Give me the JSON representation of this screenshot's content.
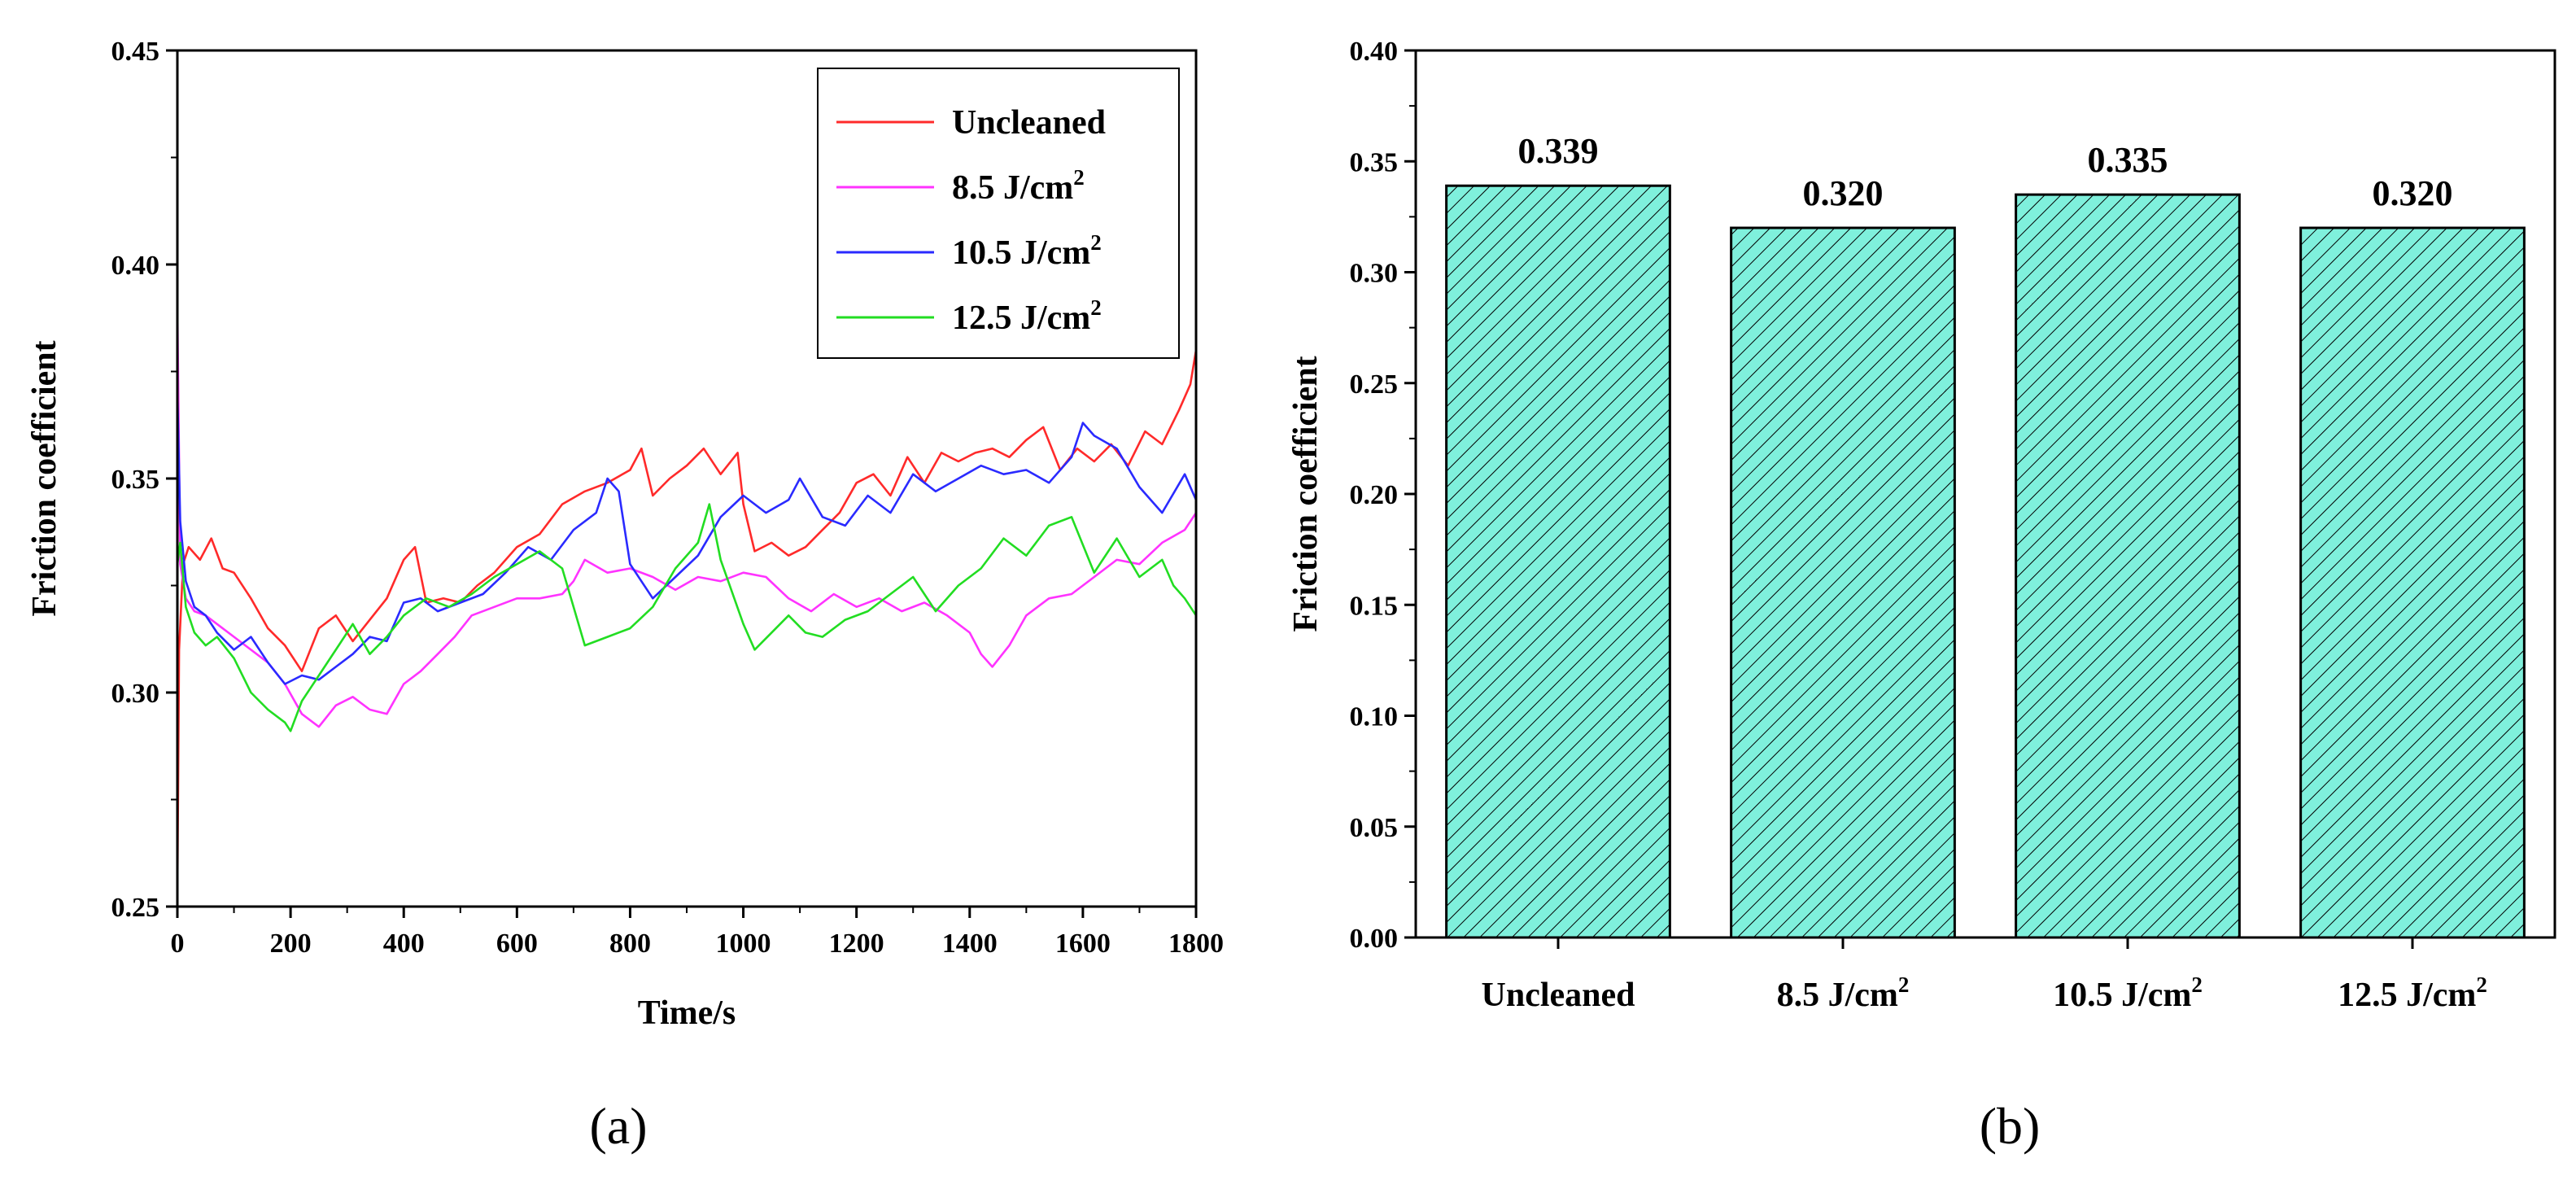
{
  "panel_labels": {
    "a": "(a)",
    "b": "(b)"
  },
  "chart_data": [
    {
      "id": "a",
      "type": "line",
      "title": "",
      "xlabel": "Time/s",
      "ylabel": "Friction coefficient",
      "xlim": [
        0,
        1800
      ],
      "ylim": [
        0.25,
        0.45
      ],
      "xticks": [
        0,
        200,
        400,
        600,
        800,
        1000,
        1200,
        1400,
        1600,
        1800
      ],
      "yticks": [
        0.25,
        0.3,
        0.35,
        0.4,
        0.45
      ],
      "ytick_labels": [
        "0.25",
        "0.30",
        "0.35",
        "0.40",
        "0.45"
      ],
      "legend_position": "top-right",
      "series": [
        {
          "name": "Uncleaned",
          "name_main": "Uncleaned",
          "name_sup": "",
          "color": "#ff2a2a",
          "x": [
            0,
            3,
            10,
            20,
            40,
            60,
            80,
            100,
            130,
            160,
            190,
            220,
            250,
            280,
            310,
            340,
            370,
            400,
            420,
            440,
            470,
            500,
            530,
            560,
            600,
            640,
            680,
            720,
            760,
            800,
            820,
            840,
            870,
            900,
            930,
            960,
            990,
            1000,
            1020,
            1050,
            1080,
            1110,
            1140,
            1170,
            1200,
            1230,
            1260,
            1290,
            1320,
            1350,
            1380,
            1410,
            1440,
            1470,
            1500,
            1530,
            1560,
            1590,
            1620,
            1650,
            1680,
            1710,
            1740,
            1770,
            1790,
            1800
          ],
          "y": [
            0.253,
            0.31,
            0.33,
            0.334,
            0.331,
            0.336,
            0.329,
            0.328,
            0.322,
            0.315,
            0.311,
            0.305,
            0.315,
            0.318,
            0.312,
            0.317,
            0.322,
            0.331,
            0.334,
            0.321,
            0.322,
            0.321,
            0.325,
            0.328,
            0.334,
            0.337,
            0.344,
            0.347,
            0.349,
            0.352,
            0.357,
            0.346,
            0.35,
            0.353,
            0.357,
            0.351,
            0.356,
            0.344,
            0.333,
            0.335,
            0.332,
            0.334,
            0.338,
            0.342,
            0.349,
            0.351,
            0.346,
            0.355,
            0.349,
            0.356,
            0.354,
            0.356,
            0.357,
            0.355,
            0.359,
            0.362,
            0.352,
            0.357,
            0.354,
            0.358,
            0.353,
            0.361,
            0.358,
            0.366,
            0.372,
            0.38
          ]
        },
        {
          "name": "8.5 J/cm2",
          "name_main": "8.5 J/cm",
          "name_sup": "2",
          "color": "#ff33ff",
          "x": [
            0,
            5,
            15,
            30,
            50,
            70,
            100,
            130,
            160,
            190,
            220,
            250,
            280,
            310,
            340,
            370,
            400,
            430,
            460,
            490,
            520,
            560,
            600,
            640,
            680,
            700,
            720,
            760,
            800,
            840,
            880,
            920,
            960,
            1000,
            1040,
            1080,
            1120,
            1160,
            1200,
            1240,
            1280,
            1320,
            1360,
            1400,
            1420,
            1440,
            1470,
            1500,
            1540,
            1580,
            1620,
            1660,
            1700,
            1740,
            1780,
            1800
          ],
          "y": [
            0.39,
            0.33,
            0.322,
            0.319,
            0.318,
            0.316,
            0.313,
            0.31,
            0.307,
            0.302,
            0.295,
            0.292,
            0.297,
            0.299,
            0.296,
            0.295,
            0.302,
            0.305,
            0.309,
            0.313,
            0.318,
            0.32,
            0.322,
            0.322,
            0.323,
            0.326,
            0.331,
            0.328,
            0.329,
            0.327,
            0.324,
            0.327,
            0.326,
            0.328,
            0.327,
            0.322,
            0.319,
            0.323,
            0.32,
            0.322,
            0.319,
            0.321,
            0.318,
            0.314,
            0.309,
            0.306,
            0.311,
            0.318,
            0.322,
            0.323,
            0.327,
            0.331,
            0.33,
            0.335,
            0.338,
            0.342
          ]
        },
        {
          "name": "10.5 J/cm2",
          "name_main": "10.5 J/cm",
          "name_sup": "2",
          "color": "#2a2aff",
          "x": [
            0,
            5,
            15,
            30,
            50,
            70,
            100,
            130,
            160,
            190,
            220,
            250,
            280,
            310,
            340,
            370,
            400,
            430,
            460,
            500,
            540,
            580,
            620,
            660,
            700,
            740,
            760,
            780,
            800,
            840,
            880,
            920,
            960,
            1000,
            1040,
            1080,
            1100,
            1140,
            1180,
            1220,
            1260,
            1300,
            1340,
            1380,
            1420,
            1460,
            1500,
            1540,
            1580,
            1600,
            1620,
            1660,
            1700,
            1740,
            1780,
            1800
          ],
          "y": [
            0.37,
            0.34,
            0.326,
            0.32,
            0.318,
            0.314,
            0.31,
            0.313,
            0.307,
            0.302,
            0.304,
            0.303,
            0.306,
            0.309,
            0.313,
            0.312,
            0.321,
            0.322,
            0.319,
            0.321,
            0.323,
            0.328,
            0.334,
            0.331,
            0.338,
            0.342,
            0.35,
            0.347,
            0.33,
            0.322,
            0.327,
            0.332,
            0.341,
            0.346,
            0.342,
            0.345,
            0.35,
            0.341,
            0.339,
            0.346,
            0.342,
            0.351,
            0.347,
            0.35,
            0.353,
            0.351,
            0.352,
            0.349,
            0.355,
            0.363,
            0.36,
            0.357,
            0.348,
            0.342,
            0.351,
            0.345
          ]
        },
        {
          "name": "12.5 J/cm2",
          "name_main": "12.5 J/cm",
          "name_sup": "2",
          "color": "#22dd22",
          "x": [
            0,
            5,
            15,
            30,
            50,
            70,
            100,
            130,
            160,
            190,
            200,
            220,
            250,
            280,
            310,
            340,
            370,
            400,
            440,
            480,
            520,
            560,
            600,
            640,
            680,
            700,
            720,
            760,
            800,
            840,
            880,
            920,
            940,
            960,
            1000,
            1020,
            1050,
            1080,
            1110,
            1140,
            1180,
            1220,
            1260,
            1300,
            1340,
            1380,
            1420,
            1460,
            1500,
            1540,
            1580,
            1620,
            1660,
            1700,
            1740,
            1760,
            1780,
            1800
          ],
          "y": [
            0.33,
            0.335,
            0.32,
            0.314,
            0.311,
            0.313,
            0.308,
            0.3,
            0.296,
            0.293,
            0.291,
            0.298,
            0.304,
            0.31,
            0.316,
            0.309,
            0.313,
            0.318,
            0.322,
            0.32,
            0.323,
            0.327,
            0.33,
            0.333,
            0.329,
            0.32,
            0.311,
            0.313,
            0.315,
            0.32,
            0.329,
            0.335,
            0.344,
            0.331,
            0.316,
            0.31,
            0.314,
            0.318,
            0.314,
            0.313,
            0.317,
            0.319,
            0.323,
            0.327,
            0.319,
            0.325,
            0.329,
            0.336,
            0.332,
            0.339,
            0.341,
            0.328,
            0.336,
            0.327,
            0.331,
            0.325,
            0.322,
            0.318
          ]
        }
      ]
    },
    {
      "id": "b",
      "type": "bar",
      "title": "",
      "xlabel": "",
      "ylabel": "Friction coefficient",
      "ylim": [
        0,
        0.4
      ],
      "yticks": [
        0,
        0.05,
        0.1,
        0.15,
        0.2,
        0.25,
        0.3,
        0.35,
        0.4
      ],
      "ytick_labels": [
        "0.00",
        "0.05",
        "0.10",
        "0.15",
        "0.20",
        "0.25",
        "0.30",
        "0.35",
        "0.40"
      ],
      "categories": [
        "Uncleaned",
        "8.5 J/cm2",
        "10.5 J/cm2",
        "12.5 J/cm2"
      ],
      "category_main": [
        "Uncleaned",
        "8.5 J/cm",
        "10.5 J/cm",
        "12.5 J/cm"
      ],
      "category_sup": [
        "",
        "2",
        "2",
        "2"
      ],
      "values": [
        0.339,
        0.32,
        0.335,
        0.32
      ],
      "value_labels": [
        "0.339",
        "0.320",
        "0.335",
        "0.320"
      ],
      "bar_color": "#7ff0dc",
      "hatch": "diagonal"
    }
  ]
}
